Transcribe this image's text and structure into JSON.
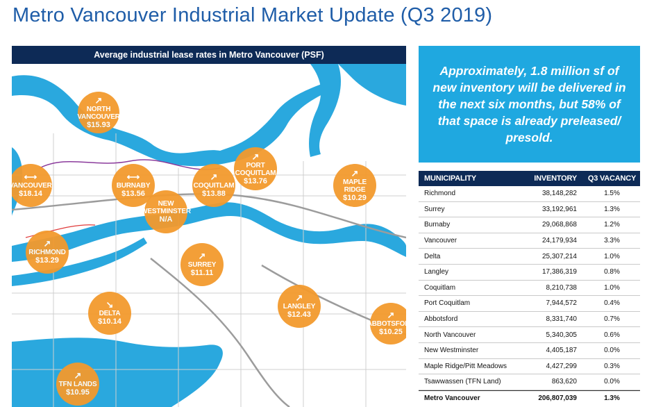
{
  "page": {
    "title": "Metro Vancouver Industrial Market Update (Q3 2019)"
  },
  "map": {
    "header": "Average industrial lease rates in Metro Vancouver (PSF)",
    "bubbles": [
      {
        "name": "NORTH VANCOUVER",
        "value": "$15.93",
        "trend": "up"
      },
      {
        "name": "VANCOUVER",
        "value": "$18.14",
        "trend": "flat"
      },
      {
        "name": "BURNABY",
        "value": "$13.56",
        "trend": "flat"
      },
      {
        "name": "NEW WESTMINSTER",
        "value": "N/A",
        "trend": "none"
      },
      {
        "name": "COQUITLAM",
        "value": "$13.88",
        "trend": "up"
      },
      {
        "name": "PORT COQUITLAM",
        "value": "$13.76",
        "trend": "up"
      },
      {
        "name": "MAPLE RIDGE",
        "value": "$10.29",
        "trend": "up"
      },
      {
        "name": "RICHMOND",
        "value": "$13.29",
        "trend": "up"
      },
      {
        "name": "SURREY",
        "value": "$11.11",
        "trend": "up"
      },
      {
        "name": "DELTA",
        "value": "$10.14",
        "trend": "down"
      },
      {
        "name": "LANGLEY",
        "value": "$12.43",
        "trend": "up"
      },
      {
        "name": "ABBOTSFORD",
        "value": "$10.25",
        "trend": "up"
      },
      {
        "name": "TFN LANDS",
        "value": "$10.95",
        "trend": "up"
      }
    ],
    "colors": {
      "water": "#2aa8de",
      "land": "#ffffff",
      "bubble": "#f39a2e",
      "roads": "#bfbfbf"
    }
  },
  "callout": {
    "text": "Approximately, 1.8 million sf of new inventory will be delivered in the next six months, but 58% of that space is already preleased/ presold."
  },
  "table": {
    "headers": [
      "MUNICIPALITY",
      "INVENTORY",
      "Q3 VACANCY"
    ],
    "rows": [
      {
        "municipality": "Richmond",
        "inventory": "38,148,282",
        "vacancy": "1.5%"
      },
      {
        "municipality": "Surrey",
        "inventory": "33,192,961",
        "vacancy": "1.3%"
      },
      {
        "municipality": "Burnaby",
        "inventory": "29,068,868",
        "vacancy": "1.2%"
      },
      {
        "municipality": "Vancouver",
        "inventory": "24,179,934",
        "vacancy": "3.3%"
      },
      {
        "municipality": "Delta",
        "inventory": "25,307,214",
        "vacancy": "1.0%"
      },
      {
        "municipality": "Langley",
        "inventory": "17,386,319",
        "vacancy": "0.8%"
      },
      {
        "municipality": "Coquitlam",
        "inventory": "8,210,738",
        "vacancy": "1.0%"
      },
      {
        "municipality": "Port Coquitlam",
        "inventory": "7,944,572",
        "vacancy": "0.4%"
      },
      {
        "municipality": "Abbotsford",
        "inventory": "8,331,740",
        "vacancy": "0.7%"
      },
      {
        "municipality": "North Vancouver",
        "inventory": "5,340,305",
        "vacancy": "0.6%"
      },
      {
        "municipality": "New Westminster",
        "inventory": "4,405,187",
        "vacancy": "0.0%"
      },
      {
        "municipality": "Maple Ridge/Pitt Meadows",
        "inventory": "4,427,299",
        "vacancy": "0.3%"
      },
      {
        "municipality": "Tsawwassen (TFN Land)",
        "inventory": "863,620",
        "vacancy": "0.0%"
      }
    ],
    "total": {
      "municipality": "Metro Vancouver",
      "inventory": "206,807,039",
      "vacancy": "1.3%"
    }
  }
}
